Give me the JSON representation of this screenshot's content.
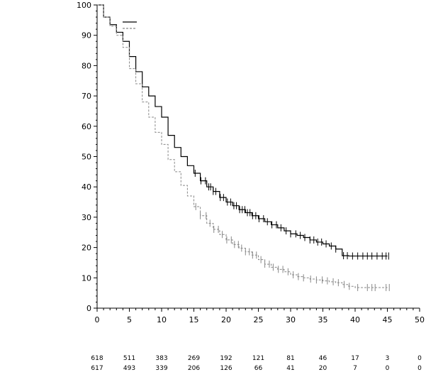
{
  "chart_data": {
    "type": "line",
    "title": "",
    "xlabel": "",
    "ylabel": "",
    "xlim": [
      0,
      50
    ],
    "ylim": [
      0,
      100
    ],
    "x_ticks": [
      0,
      5,
      10,
      15,
      20,
      25,
      30,
      35,
      40,
      45,
      50
    ],
    "y_ticks": [
      0,
      10,
      20,
      30,
      40,
      50,
      60,
      70,
      80,
      90,
      100
    ],
    "grid": false,
    "legend": {
      "placement": "top-left",
      "entries": [
        {
          "style": "solid",
          "color": "#000000"
        },
        {
          "style": "dashed",
          "color": "#888888"
        }
      ]
    },
    "series": [
      {
        "style": "solid",
        "color": "#000000",
        "points": [
          [
            0,
            100
          ],
          [
            1,
            96
          ],
          [
            2,
            93.5
          ],
          [
            3,
            91
          ],
          [
            4,
            88
          ],
          [
            5,
            83
          ],
          [
            6,
            78
          ],
          [
            7,
            73
          ],
          [
            8,
            70
          ],
          [
            9,
            66.5
          ],
          [
            10,
            63
          ],
          [
            11,
            57
          ],
          [
            12,
            53
          ],
          [
            13,
            50
          ],
          [
            14,
            47
          ],
          [
            15,
            44.5
          ],
          [
            16,
            42
          ],
          [
            17,
            40
          ],
          [
            18,
            38.5
          ],
          [
            19,
            36.5
          ],
          [
            20,
            35
          ],
          [
            21,
            33.8
          ],
          [
            22,
            32.5
          ],
          [
            23,
            31.5
          ],
          [
            24,
            30.5
          ],
          [
            25,
            29.5
          ],
          [
            26,
            28.5
          ],
          [
            27,
            27.5
          ],
          [
            28,
            26.5
          ],
          [
            29,
            25.5
          ],
          [
            30,
            24.5
          ],
          [
            31,
            24
          ],
          [
            32,
            23.3
          ],
          [
            33,
            22.5
          ],
          [
            34,
            21.8
          ],
          [
            35,
            21.2
          ],
          [
            36,
            20.5
          ],
          [
            37,
            19.5
          ],
          [
            38,
            17.3
          ],
          [
            39,
            17.2
          ],
          [
            45,
            17.2
          ]
        ],
        "censor_times": [
          15.2,
          16.1,
          16.8,
          17.3,
          17.6,
          18.0,
          18.4,
          19.1,
          19.6,
          20.2,
          20.7,
          21.2,
          21.6,
          22.1,
          22.5,
          22.9,
          23.3,
          23.7,
          24.1,
          24.6,
          25.1,
          25.8,
          26.4,
          27.1,
          27.8,
          28.5,
          29.3,
          30.0,
          30.8,
          31.5,
          32.2,
          33.0,
          33.6,
          34.2,
          34.8,
          35.5,
          36.3,
          37.0,
          38.2,
          38.8,
          39.6,
          40.4,
          41.2,
          41.9,
          42.6,
          43.4,
          44.2,
          44.8,
          45.2
        ]
      },
      {
        "style": "dashed",
        "color": "#888888",
        "points": [
          [
            0,
            100
          ],
          [
            1,
            96
          ],
          [
            2,
            93
          ],
          [
            3,
            90
          ],
          [
            4,
            86
          ],
          [
            5,
            79
          ],
          [
            6,
            74
          ],
          [
            7,
            68
          ],
          [
            8,
            63
          ],
          [
            9,
            58
          ],
          [
            10,
            54
          ],
          [
            11,
            49
          ],
          [
            12,
            45
          ],
          [
            13,
            40.5
          ],
          [
            14,
            37
          ],
          [
            15,
            33.5
          ],
          [
            16,
            30.5
          ],
          [
            17,
            28
          ],
          [
            18,
            26
          ],
          [
            19,
            24.3
          ],
          [
            20,
            22.5
          ],
          [
            21,
            21
          ],
          [
            22,
            19.8
          ],
          [
            23,
            18.6
          ],
          [
            24,
            17.5
          ],
          [
            25,
            16
          ],
          [
            26,
            14.5
          ],
          [
            27,
            13.5
          ],
          [
            28,
            12.8
          ],
          [
            29,
            12
          ],
          [
            30,
            11
          ],
          [
            31,
            10.4
          ],
          [
            32,
            10
          ],
          [
            33,
            9.6
          ],
          [
            34,
            9.3
          ],
          [
            35,
            9
          ],
          [
            36,
            8.7
          ],
          [
            37,
            8.4
          ],
          [
            38,
            7.8
          ],
          [
            39,
            7.2
          ],
          [
            40,
            6.8
          ],
          [
            45,
            6.8
          ]
        ],
        "censor_times": [
          15.3,
          16.0,
          16.9,
          17.5,
          18.1,
          18.8,
          19.4,
          20.1,
          20.8,
          21.3,
          21.9,
          22.4,
          23.0,
          23.6,
          24.1,
          24.7,
          25.4,
          26.0,
          26.7,
          27.3,
          28.1,
          28.8,
          29.6,
          30.4,
          31.2,
          32.0,
          33.1,
          34.0,
          34.9,
          35.7,
          36.6,
          37.4,
          38.3,
          39.1,
          40.4,
          41.9,
          42.6,
          43.1,
          44.8,
          45.3
        ]
      }
    ],
    "at_risk": {
      "times": [
        0,
        5,
        10,
        15,
        20,
        25,
        30,
        35,
        40,
        45,
        50
      ],
      "rows": [
        [
          "618",
          "511",
          "383",
          "269",
          "192",
          "121",
          "81",
          "46",
          "17",
          "3",
          "0"
        ],
        [
          "617",
          "493",
          "339",
          "206",
          "126",
          "66",
          "41",
          "20",
          "7",
          "0",
          "0"
        ]
      ]
    }
  }
}
